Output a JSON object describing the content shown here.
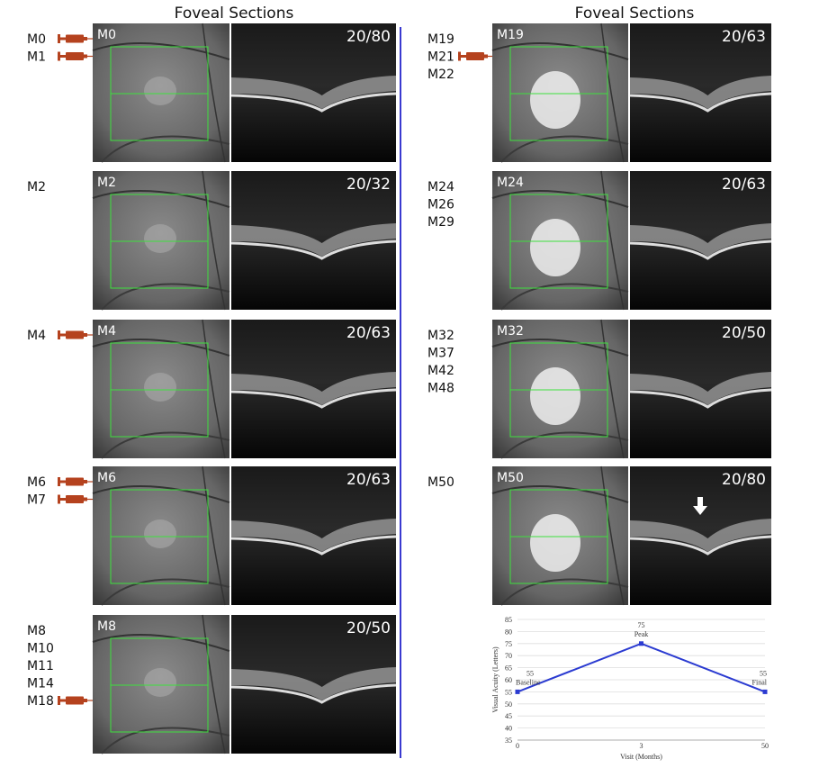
{
  "left": {
    "title": "Foveal Sections",
    "panels": [
      {
        "visits": [
          {
            "label": "M0",
            "injection": true
          },
          {
            "label": "M1",
            "injection": true
          }
        ],
        "image_label": "M0",
        "acuity": "20/80"
      },
      {
        "visits": [
          {
            "label": "M2",
            "injection": false
          }
        ],
        "image_label": "M2",
        "acuity": "20/32"
      },
      {
        "visits": [
          {
            "label": "M4",
            "injection": true
          }
        ],
        "image_label": "M4",
        "acuity": "20/63"
      },
      {
        "visits": [
          {
            "label": "M6",
            "injection": true
          },
          {
            "label": "M7",
            "injection": true
          }
        ],
        "image_label": "M6",
        "acuity": "20/63"
      },
      {
        "visits": [
          {
            "label": "M8",
            "injection": false
          },
          {
            "label": "M10",
            "injection": false
          },
          {
            "label": "M11",
            "injection": false
          },
          {
            "label": "M14",
            "injection": false
          },
          {
            "label": "M18",
            "injection": true
          }
        ],
        "image_label": "M8",
        "acuity": "20/50"
      }
    ]
  },
  "right": {
    "title": "Foveal Sections",
    "panels": [
      {
        "visits": [
          {
            "label": "M19",
            "injection": false
          },
          {
            "label": "M21",
            "injection": true
          },
          {
            "label": "M22",
            "injection": false
          }
        ],
        "image_label": "M19",
        "acuity": "20/63"
      },
      {
        "visits": [
          {
            "label": "M24",
            "injection": false
          },
          {
            "label": "M26",
            "injection": false
          },
          {
            "label": "M29",
            "injection": false
          }
        ],
        "image_label": "M24",
        "acuity": "20/63"
      },
      {
        "visits": [
          {
            "label": "M32",
            "injection": false
          },
          {
            "label": "M37",
            "injection": false
          },
          {
            "label": "M42",
            "injection": false
          },
          {
            "label": "M48",
            "injection": false
          }
        ],
        "image_label": "M32",
        "acuity": "20/50"
      },
      {
        "visits": [
          {
            "label": "M50",
            "injection": false
          }
        ],
        "image_label": "M50",
        "acuity": "20/80"
      }
    ]
  },
  "chart_data": {
    "type": "line",
    "categories": [
      "0",
      "3",
      "50"
    ],
    "values": [
      55,
      75,
      55
    ],
    "annotations": [
      "Baseline",
      "Peak",
      "Final"
    ],
    "color": "#2b3bd1",
    "x_label": "Visit (Months)",
    "y_label": "Visual Acuity (Letters)",
    "ylim": [
      35,
      85
    ],
    "yticks": [
      35,
      40,
      45,
      50,
      55,
      60,
      65,
      70,
      75,
      80,
      85
    ],
    "grid": true
  }
}
